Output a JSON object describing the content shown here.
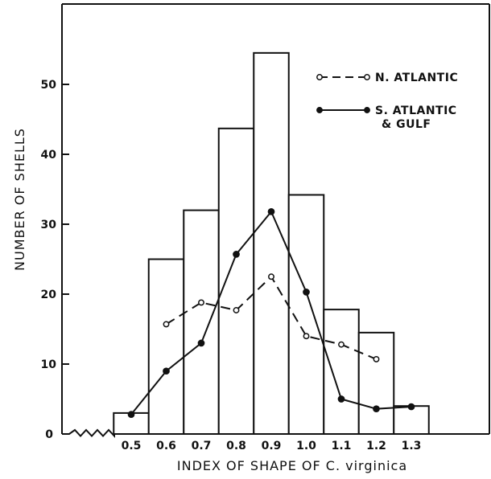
{
  "chart_data": {
    "type": "bar",
    "xlabel": "INDEX OF SHAPE OF C. virginica",
    "ylabel": "NUMBER OF SHELLS",
    "ylim": [
      0,
      60
    ],
    "y_ticks": [
      "0",
      "10",
      "20",
      "30",
      "40",
      "50"
    ],
    "categories": [
      "0.5",
      "0.6",
      "0.7",
      "0.8",
      "0.9",
      "1.0",
      "1.1",
      "1.2",
      "1.3"
    ],
    "values": [
      3,
      25,
      32,
      43.7,
      54.5,
      34.2,
      17.8,
      14.5,
      4
    ],
    "x_axis_break": true,
    "grid": false,
    "legend_position": "top-right",
    "series": [
      {
        "name": "N. ATLANTIC",
        "style": "dashed line, open circles",
        "x": [
          "0.6",
          "0.7",
          "0.8",
          "0.9",
          "1.0",
          "1.1",
          "1.2"
        ],
        "values": [
          15.7,
          18.8,
          17.7,
          22.5,
          14,
          12.8,
          10.7
        ]
      },
      {
        "name": "S. ATLANTIC & GULF",
        "style": "solid line, filled circles",
        "x": [
          "0.5",
          "0.6",
          "0.7",
          "0.8",
          "0.9",
          "1.0",
          "1.1",
          "1.2",
          "1.3"
        ],
        "values": [
          2.8,
          9,
          13,
          25.7,
          31.8,
          20.3,
          5,
          3.6,
          3.9
        ]
      }
    ]
  }
}
